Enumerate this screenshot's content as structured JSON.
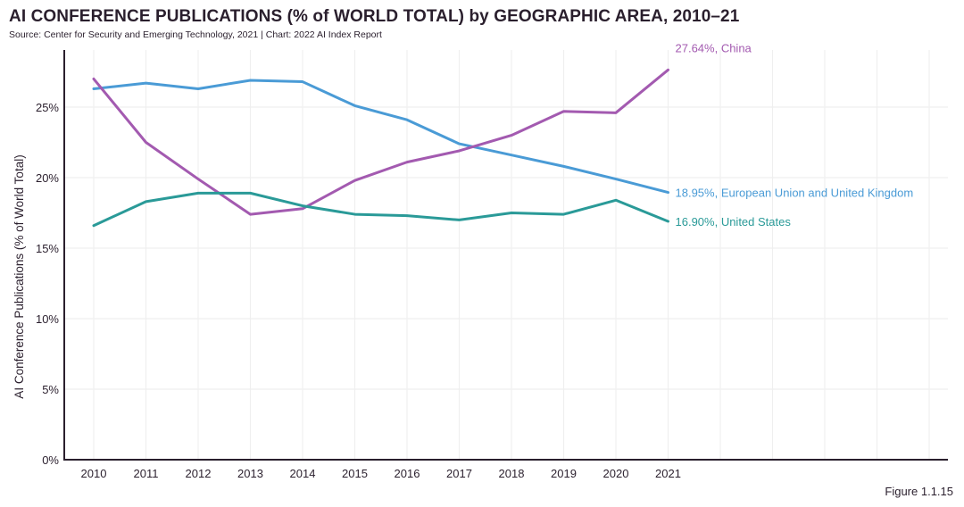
{
  "chart_data": {
    "type": "line",
    "title": "AI CONFERENCE PUBLICATIONS (% of WORLD TOTAL) by GEOGRAPHIC AREA, 2010–21",
    "subtitle": "Source: Center for Security and Emerging Technology, 2021 | Chart: 2022 AI Index Report",
    "xlabel": "",
    "ylabel": "AI Conference Publications (% of World Total)",
    "x": [
      "2010",
      "2011",
      "2012",
      "2013",
      "2014",
      "2015",
      "2016",
      "2017",
      "2018",
      "2019",
      "2020",
      "2021"
    ],
    "x_axis_extent_years": [
      2010,
      2026
    ],
    "ylim": [
      0,
      30
    ],
    "yticks": [
      0,
      5,
      10,
      15,
      20,
      25
    ],
    "ytick_labels": [
      "0%",
      "5%",
      "10%",
      "15%",
      "20%",
      "25%"
    ],
    "grid": true,
    "series": [
      {
        "name": "European Union and United Kingdom",
        "color": "#4a9bd6",
        "end_label": "18.95%, European Union and United Kingdom",
        "values": [
          26.3,
          26.7,
          26.3,
          26.9,
          26.8,
          25.1,
          24.1,
          22.4,
          21.6,
          20.8,
          19.9,
          18.95
        ]
      },
      {
        "name": "China",
        "color": "#a35ab0",
        "end_label": "27.64%, China",
        "values": [
          27.0,
          22.5,
          19.9,
          17.4,
          17.8,
          19.8,
          21.1,
          21.9,
          23.0,
          24.7,
          24.6,
          27.64
        ]
      },
      {
        "name": "United States",
        "color": "#2a9a98",
        "end_label": "16.90%, United States",
        "values": [
          16.6,
          18.3,
          18.9,
          18.9,
          18.0,
          17.4,
          17.3,
          17.0,
          17.5,
          17.4,
          18.4,
          16.9
        ]
      }
    ],
    "annotations": [
      "Figure 1.1.15"
    ]
  },
  "footer": {
    "figure_label": "Figure 1.1.15"
  }
}
